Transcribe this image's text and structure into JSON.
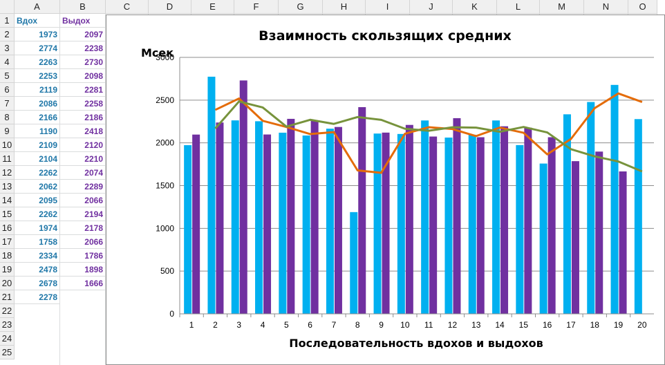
{
  "spreadsheet": {
    "column_headers": [
      "A",
      "B",
      "C",
      "D",
      "E",
      "F",
      "G",
      "H",
      "I",
      "J",
      "K",
      "L",
      "M",
      "N",
      "O"
    ],
    "row_headers": [
      "1",
      "2",
      "3",
      "4",
      "5",
      "6",
      "7",
      "8",
      "9",
      "10",
      "11",
      "12",
      "13",
      "14",
      "15",
      "16",
      "17",
      "18",
      "19",
      "20",
      "21",
      "22",
      "23",
      "24",
      "25"
    ],
    "header_a": "Вдох",
    "header_b": "Выдох",
    "col_a_values": [
      "1973",
      "2774",
      "2263",
      "2253",
      "2119",
      "2086",
      "2166",
      "1190",
      "2109",
      "2104",
      "2262",
      "2062",
      "2095",
      "2262",
      "1974",
      "1758",
      "2334",
      "2478",
      "2678",
      "2278"
    ],
    "col_b_values": [
      "2097",
      "2238",
      "2730",
      "2098",
      "2281",
      "2258",
      "2186",
      "2418",
      "2120",
      "2210",
      "2074",
      "2289",
      "2066",
      "2194",
      "2178",
      "2066",
      "1786",
      "1898",
      "1666"
    ]
  },
  "chart_data": {
    "type": "bar",
    "title": "Взаимность скользящих средних",
    "xlabel": "Последовательность  вдохов и выдохов",
    "ylabel": "Мсек",
    "categories": [
      "1",
      "2",
      "3",
      "4",
      "5",
      "6",
      "7",
      "8",
      "9",
      "10",
      "11",
      "12",
      "13",
      "14",
      "15",
      "16",
      "17",
      "18",
      "19",
      "20"
    ],
    "ylim": [
      0,
      3000
    ],
    "yticks": [
      "0",
      "500",
      "1000",
      "1500",
      "2000",
      "2500",
      "3000"
    ],
    "grid": true,
    "series": [
      {
        "kind": "bar",
        "color": "#00b0f0",
        "values": [
          1973,
          2774,
          2263,
          2253,
          2119,
          2086,
          2166,
          1190,
          2109,
          2104,
          2262,
          2062,
          2095,
          2262,
          1974,
          1758,
          2334,
          2478,
          2678,
          2278
        ]
      },
      {
        "kind": "bar",
        "color": "#7030a0",
        "values": [
          2097,
          2238,
          2730,
          2098,
          2281,
          2258,
          2186,
          2418,
          2120,
          2210,
          2074,
          2289,
          2066,
          2194,
          2178,
          2066,
          1786,
          1898,
          1666,
          null
        ]
      },
      {
        "kind": "line",
        "color": "#e46c0a",
        "values": [
          null,
          2386,
          2519,
          2258,
          2186,
          2103,
          2126,
          1678,
          1650,
          2107,
          2183,
          2162,
          2079,
          2179,
          2118,
          1866,
          2046,
          2406,
          2578,
          2478
        ]
      },
      {
        "kind": "line",
        "color": "#77933c",
        "values": [
          null,
          2168,
          2484,
          2414,
          2190,
          2270,
          2222,
          2302,
          2269,
          2165,
          2142,
          2182,
          2178,
          2130,
          2186,
          2122,
          1926,
          1842,
          1782,
          1666
        ]
      }
    ]
  }
}
